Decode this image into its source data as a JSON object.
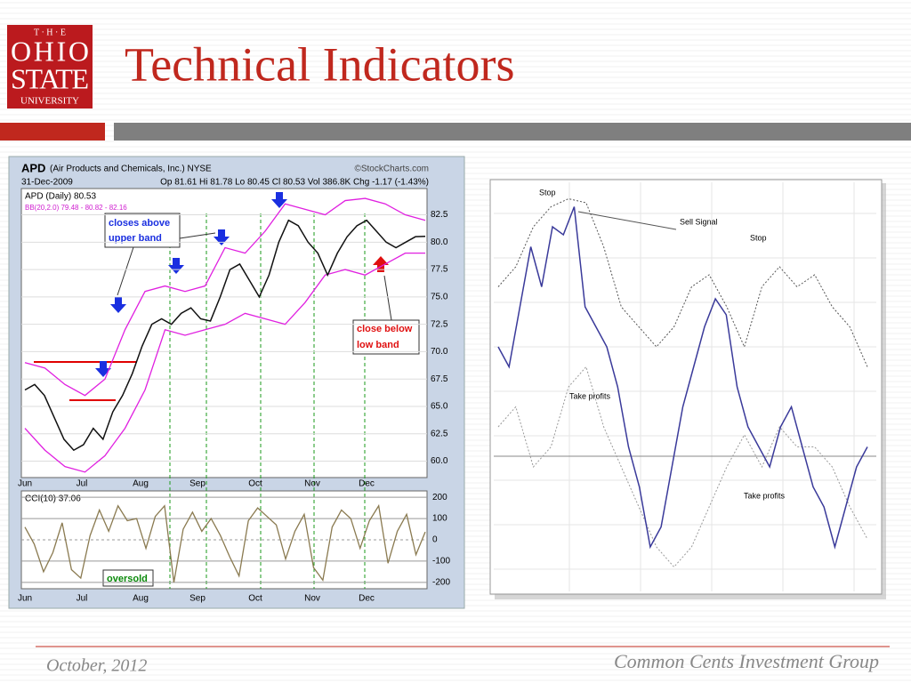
{
  "logo": {
    "lines": [
      "T · H · E",
      "OHIO",
      "STATE",
      "UNIVERSITY"
    ]
  },
  "header": {
    "title": "Technical Indicators"
  },
  "figures": [
    {
      "symbol": "APD",
      "company": "(Air Products and Chemicals, Inc.) NYSE",
      "source": "©StockCharts.com",
      "date": "31-Dec-2009",
      "quote": "Op 81.61  Hi 81.78  Lo 80.45  Cl 80.53  Vol 386.8K  Chg -1.17 (-1.43%)",
      "price_legend": "APD (Daily) 80.53",
      "bb_legend": "BB(20,2.0) 79.48 - 80.82 - 82.16",
      "cci_legend": "CCI(10) 37.06",
      "months": [
        "Jun",
        "Jul",
        "Aug",
        "Sep",
        "Oct",
        "Nov",
        "Dec"
      ],
      "ylim": [
        58.5,
        84.9
      ],
      "yticks": [
        {
          "value": 60,
          "label": "60.0"
        },
        62.5,
        {
          "value": 65,
          "label": "65.0"
        },
        67.5,
        {
          "value": 70,
          "label": "70.0"
        },
        72.5,
        {
          "value": 75,
          "label": "75.0"
        },
        77.5,
        {
          "value": 80,
          "label": "80.0"
        },
        82.5
      ],
      "price": {
        "color": "#111111",
        "values": [
          66.5,
          67,
          66,
          64,
          62,
          61,
          61.5,
          63,
          62,
          64.5,
          66,
          68,
          70.5,
          72.5,
          73,
          72.5,
          73.5,
          74,
          73,
          72.8,
          75,
          77.5,
          78,
          76.5,
          75,
          77,
          80,
          82,
          81.5,
          80,
          79,
          77,
          79,
          80.5,
          81.5,
          82,
          81,
          80,
          79.5,
          80,
          80.5,
          80.53
        ]
      },
      "upper_band": {
        "color": "#e020e0",
        "values": [
          69,
          68.5,
          67,
          66,
          67.5,
          72,
          75.5,
          76,
          75.5,
          76,
          79.5,
          79,
          81,
          83.5,
          83,
          82.5,
          83.8,
          84,
          83.5,
          82.5,
          82
        ]
      },
      "lower_band": {
        "color": "#e020e0",
        "values": [
          63,
          61,
          59.5,
          59,
          60.5,
          63,
          66.5,
          72,
          71.5,
          72,
          72.5,
          73.5,
          73,
          72.5,
          74.5,
          77,
          77.5,
          77,
          78,
          79,
          79
        ]
      },
      "cci_ylim": [
        -230,
        230
      ],
      "cci_yticks": [
        200,
        100,
        0,
        -100,
        -200
      ],
      "cci": {
        "color": "#8a7a50",
        "values": [
          60,
          -20,
          -150,
          -60,
          80,
          -140,
          -180,
          20,
          140,
          40,
          160,
          90,
          100,
          -40,
          110,
          160,
          -200,
          50,
          130,
          40,
          100,
          20,
          -80,
          -170,
          90,
          150,
          110,
          70,
          -90,
          40,
          120,
          -130,
          -190,
          60,
          140,
          100,
          -40,
          90,
          160,
          -110,
          40,
          120,
          -70,
          37.06
        ]
      },
      "annotations": {
        "closes_above": [
          "closes above",
          "upper band"
        ],
        "close_below": [
          "close below",
          "low band"
        ],
        "oversold": "oversold"
      }
    },
    {
      "labels": {
        "stop_1": "Stop",
        "sell_signal": "Sell Signal",
        "stop_2": "Stop",
        "take_profits_1": "Take profits",
        "take_profits_2": "Take profits"
      },
      "ylim": [
        0,
        100
      ],
      "price": {
        "color": "#3a3a9a",
        "values": [
          60,
          55,
          70,
          85,
          75,
          90,
          88,
          95,
          70,
          65,
          60,
          50,
          35,
          25,
          10,
          15,
          30,
          45,
          55,
          65,
          72,
          68,
          50,
          40,
          35,
          30,
          40,
          45,
          35,
          25,
          20,
          10,
          20,
          30,
          35
        ]
      },
      "upper_band": {
        "color": "#555555",
        "values": [
          75,
          80,
          90,
          95,
          97,
          96,
          85,
          70,
          65,
          60,
          65,
          75,
          78,
          70,
          60,
          75,
          80,
          75,
          78,
          70,
          65,
          55
        ]
      },
      "lower_band": {
        "color": "#999999",
        "values": [
          40,
          45,
          30,
          35,
          50,
          55,
          40,
          30,
          20,
          10,
          5,
          10,
          20,
          30,
          38,
          30,
          40,
          35,
          35,
          30,
          20,
          12
        ]
      }
    }
  ],
  "footer": {
    "date": "October, 2012",
    "organization": "Common Cents Investment Group"
  }
}
